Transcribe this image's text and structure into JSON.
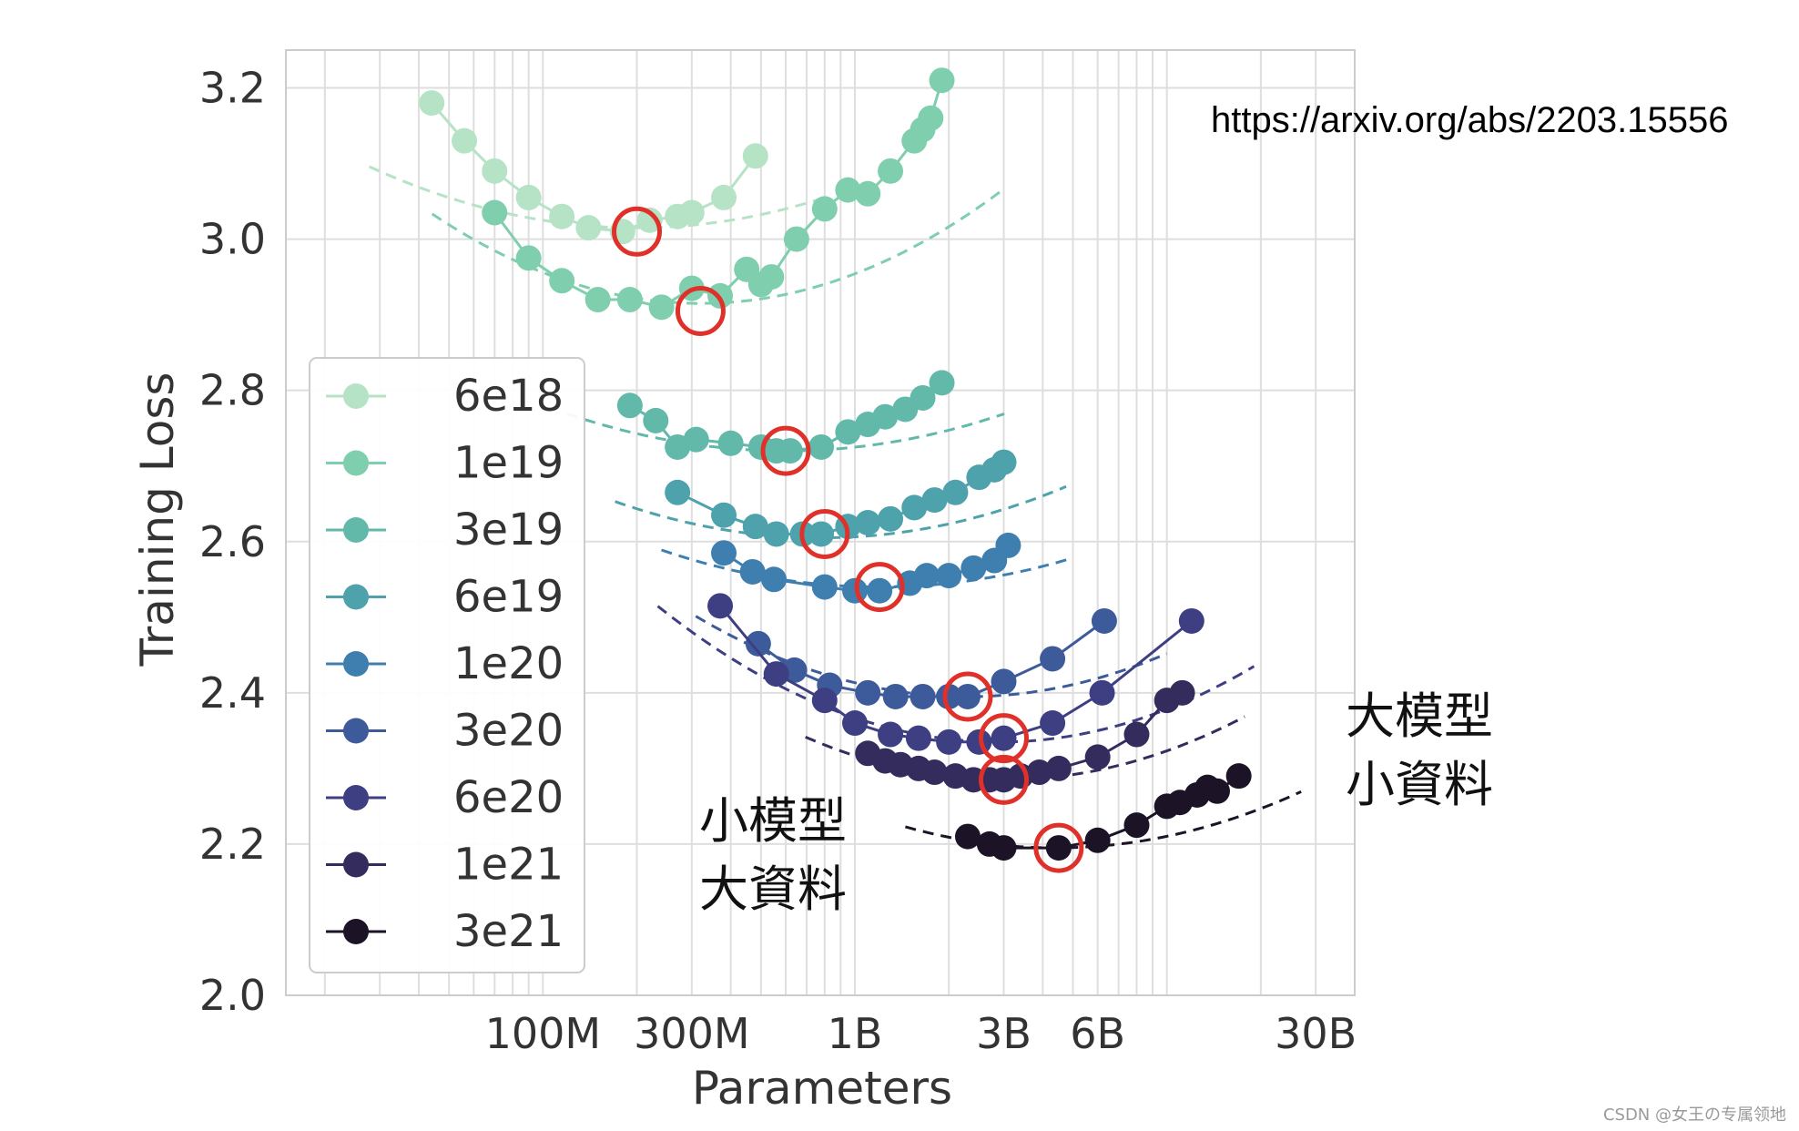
{
  "chart_data": {
    "type": "line",
    "title": "",
    "xlabel": "Parameters",
    "ylabel": "Training Loss",
    "x_scale": "log",
    "xlim": [
      15000000,
      40000000000
    ],
    "ylim": [
      2.0,
      3.25
    ],
    "xticks": [
      {
        "value": 100000000,
        "label": "100M"
      },
      {
        "value": 300000000,
        "label": "300M"
      },
      {
        "value": 1000000000,
        "label": "1B"
      },
      {
        "value": 3000000000,
        "label": "3B"
      },
      {
        "value": 6000000000,
        "label": "6B"
      },
      {
        "value": 30000000000,
        "label": "30B"
      }
    ],
    "yticks": [
      {
        "value": 2.0,
        "label": "2.0"
      },
      {
        "value": 2.2,
        "label": "2.2"
      },
      {
        "value": 2.4,
        "label": "2.4"
      },
      {
        "value": 2.6,
        "label": "2.6"
      },
      {
        "value": 2.8,
        "label": "2.8"
      },
      {
        "value": 3.0,
        "label": "3.0"
      },
      {
        "value": 3.2,
        "label": "3.2"
      }
    ],
    "grid": true,
    "legend_position": "left",
    "series": [
      {
        "name": "6e18",
        "color": "#b6e2c6",
        "fit": {
          "a": 3.015,
          "opt": 200000000,
          "c": 0.11
        },
        "points": [
          [
            44000000,
            3.18
          ],
          [
            56000000,
            3.13
          ],
          [
            70000000,
            3.09
          ],
          [
            90000000,
            3.055
          ],
          [
            115000000,
            3.03
          ],
          [
            140000000,
            3.015
          ],
          [
            180000000,
            3.01
          ],
          [
            220000000,
            3.025
          ],
          [
            270000000,
            3.03
          ],
          [
            300000000,
            3.035
          ],
          [
            380000000,
            3.055
          ],
          [
            480000000,
            3.11
          ]
        ],
        "optimum": [
          200000000,
          3.01
        ]
      },
      {
        "name": "1e19",
        "color": "#7fcfae",
        "fit": {
          "a": 2.915,
          "opt": 320000000,
          "c": 0.16
        },
        "points": [
          [
            70000000,
            3.035
          ],
          [
            90000000,
            2.975
          ],
          [
            115000000,
            2.945
          ],
          [
            150000000,
            2.92
          ],
          [
            190000000,
            2.92
          ],
          [
            240000000,
            2.91
          ],
          [
            300000000,
            2.935
          ],
          [
            370000000,
            2.925
          ],
          [
            450000000,
            2.96
          ],
          [
            500000000,
            2.94
          ],
          [
            540000000,
            2.95
          ],
          [
            650000000,
            3.0
          ],
          [
            800000000,
            3.04
          ],
          [
            950000000,
            3.065
          ],
          [
            1100000000,
            3.06
          ],
          [
            1300000000,
            3.09
          ],
          [
            1550000000,
            3.13
          ],
          [
            1650000000,
            3.145
          ],
          [
            1750000000,
            3.16
          ],
          [
            1900000000,
            3.21
          ]
        ],
        "optimum": [
          320000000,
          2.905
        ]
      },
      {
        "name": "3e19",
        "color": "#62b9aa",
        "fit": {
          "a": 2.72,
          "opt": 600000000,
          "c": 0.1
        },
        "points": [
          [
            190000000,
            2.78
          ],
          [
            230000000,
            2.76
          ],
          [
            270000000,
            2.725
          ],
          [
            310000000,
            2.735
          ],
          [
            400000000,
            2.73
          ],
          [
            500000000,
            2.725
          ],
          [
            560000000,
            2.72
          ],
          [
            620000000,
            2.72
          ],
          [
            780000000,
            2.725
          ],
          [
            950000000,
            2.745
          ],
          [
            1100000000,
            2.755
          ],
          [
            1250000000,
            2.765
          ],
          [
            1450000000,
            2.775
          ],
          [
            1650000000,
            2.79
          ],
          [
            1900000000,
            2.81
          ]
        ],
        "optimum": [
          600000000,
          2.72
        ]
      },
      {
        "name": "6e19",
        "color": "#4ea2ac",
        "fit": {
          "a": 2.605,
          "opt": 780000000,
          "c": 0.11
        },
        "points": [
          [
            270000000,
            2.665
          ],
          [
            380000000,
            2.635
          ],
          [
            480000000,
            2.62
          ],
          [
            560000000,
            2.61
          ],
          [
            680000000,
            2.61
          ],
          [
            780000000,
            2.61
          ],
          [
            950000000,
            2.62
          ],
          [
            1100000000,
            2.625
          ],
          [
            1300000000,
            2.63
          ],
          [
            1550000000,
            2.645
          ],
          [
            1800000000,
            2.655
          ],
          [
            2100000000,
            2.665
          ],
          [
            2500000000,
            2.685
          ],
          [
            2800000000,
            2.695
          ],
          [
            3000000000,
            2.705
          ]
        ],
        "optimum": [
          800000000,
          2.61
        ]
      },
      {
        "name": "1e20",
        "color": "#3f7fb0",
        "fit": {
          "a": 2.54,
          "opt": 1200000000,
          "c": 0.1
        },
        "points": [
          [
            380000000,
            2.585
          ],
          [
            470000000,
            2.56
          ],
          [
            550000000,
            2.55
          ],
          [
            800000000,
            2.54
          ],
          [
            1000000000,
            2.535
          ],
          [
            1200000000,
            2.535
          ],
          [
            1500000000,
            2.545
          ],
          [
            1700000000,
            2.555
          ],
          [
            2000000000,
            2.555
          ],
          [
            2400000000,
            2.565
          ],
          [
            2800000000,
            2.575
          ],
          [
            3100000000,
            2.595
          ]
        ],
        "optimum": [
          1200000000,
          2.54
        ]
      },
      {
        "name": "3e20",
        "color": "#3d5a9a",
        "fit": {
          "a": 2.395,
          "opt": 2300000000,
          "c": 0.14
        },
        "points": [
          [
            490000000,
            2.465
          ],
          [
            640000000,
            2.43
          ],
          [
            830000000,
            2.41
          ],
          [
            1100000000,
            2.4
          ],
          [
            1350000000,
            2.395
          ],
          [
            1650000000,
            2.395
          ],
          [
            2000000000,
            2.395
          ],
          [
            2300000000,
            2.395
          ],
          [
            3000000000,
            2.415
          ],
          [
            4300000000,
            2.445
          ],
          [
            6300000000,
            2.495
          ]
        ],
        "optimum": [
          2300000000,
          2.395
        ]
      },
      {
        "name": "6e20",
        "color": "#3d3f82",
        "fit": {
          "a": 2.335,
          "opt": 2900000000,
          "c": 0.15
        },
        "points": [
          [
            370000000,
            2.515
          ],
          [
            560000000,
            2.425
          ],
          [
            800000000,
            2.39
          ],
          [
            1000000000,
            2.36
          ],
          [
            1300000000,
            2.345
          ],
          [
            1600000000,
            2.34
          ],
          [
            2000000000,
            2.335
          ],
          [
            2500000000,
            2.335
          ],
          [
            3000000000,
            2.34
          ],
          [
            4300000000,
            2.36
          ],
          [
            6200000000,
            2.4
          ],
          [
            12000000000,
            2.495
          ]
        ],
        "optimum": [
          3000000000,
          2.34
        ]
      },
      {
        "name": "1e21",
        "color": "#352c5e",
        "fit": {
          "a": 2.285,
          "opt": 3000000000,
          "c": 0.14
        },
        "points": [
          [
            1100000000,
            2.32
          ],
          [
            1250000000,
            2.31
          ],
          [
            1400000000,
            2.305
          ],
          [
            1600000000,
            2.3
          ],
          [
            1800000000,
            2.295
          ],
          [
            2100000000,
            2.29
          ],
          [
            2400000000,
            2.285
          ],
          [
            2700000000,
            2.285
          ],
          [
            3000000000,
            2.285
          ],
          [
            3400000000,
            2.29
          ],
          [
            3900000000,
            2.295
          ],
          [
            4500000000,
            2.3
          ],
          [
            6000000000,
            2.315
          ],
          [
            8000000000,
            2.345
          ],
          [
            10000000000,
            2.39
          ],
          [
            11200000000,
            2.4
          ]
        ],
        "optimum": [
          3000000000,
          2.285
        ]
      },
      {
        "name": "3e21",
        "color": "#1d1326",
        "fit": {
          "a": 2.195,
          "opt": 4400000000,
          "c": 0.12
        },
        "points": [
          [
            2300000000,
            2.21
          ],
          [
            2700000000,
            2.2
          ],
          [
            3000000000,
            2.195
          ],
          [
            4500000000,
            2.195
          ],
          [
            6000000000,
            2.205
          ],
          [
            8000000000,
            2.225
          ],
          [
            10000000000,
            2.25
          ],
          [
            11000000000,
            2.255
          ],
          [
            12500000000,
            2.265
          ],
          [
            13500000000,
            2.275
          ],
          [
            14500000000,
            2.27
          ],
          [
            17000000000,
            2.29
          ]
        ],
        "optimum": [
          4500000000,
          2.195
        ]
      }
    ]
  },
  "annotations": {
    "url": "https://arxiv.org/abs/2203.15556",
    "left_note_line1": "小模型",
    "left_note_line2": "大資料",
    "right_note_line1": "大模型",
    "right_note_line2": "小資料",
    "watermark": "CSDN @女王の专属领地"
  },
  "colors": {
    "optimum_marker": "#e0302a",
    "grid": "#dedede",
    "frame": "#cccccc"
  }
}
